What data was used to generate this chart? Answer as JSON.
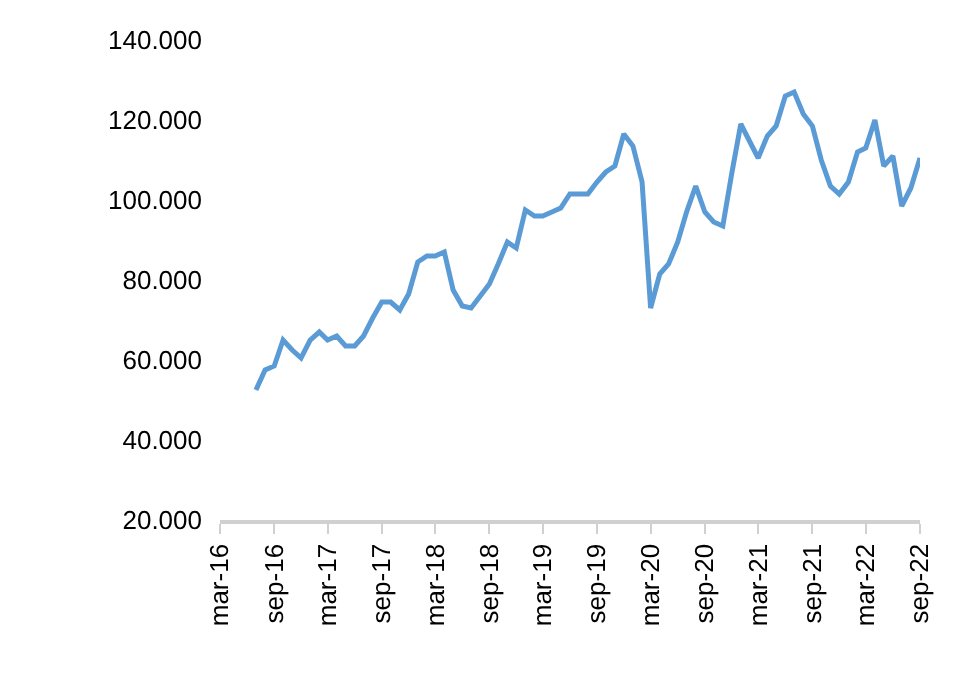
{
  "chart_data": {
    "type": "line",
    "x": [
      "2016-07",
      "2016-08",
      "2016-09",
      "2016-10",
      "2016-11",
      "2016-12",
      "2017-01",
      "2017-02",
      "2017-03",
      "2017-04",
      "2017-05",
      "2017-06",
      "2017-07",
      "2017-08",
      "2017-09",
      "2017-10",
      "2017-11",
      "2017-12",
      "2018-01",
      "2018-02",
      "2018-03",
      "2018-04",
      "2018-05",
      "2018-06",
      "2018-07",
      "2018-08",
      "2018-09",
      "2018-10",
      "2018-11",
      "2018-12",
      "2019-01",
      "2019-02",
      "2019-03",
      "2019-04",
      "2019-05",
      "2019-06",
      "2019-07",
      "2019-08",
      "2019-09",
      "2019-10",
      "2019-11",
      "2019-12",
      "2020-01",
      "2020-02",
      "2020-03",
      "2020-04",
      "2020-05",
      "2020-06",
      "2020-07",
      "2020-08",
      "2020-09",
      "2020-10",
      "2020-11",
      "2020-12",
      "2021-01",
      "2021-02",
      "2021-03",
      "2021-04",
      "2021-05",
      "2021-06",
      "2021-07",
      "2021-08",
      "2021-09",
      "2021-10",
      "2021-11",
      "2021-12",
      "2022-01",
      "2022-02",
      "2022-03",
      "2022-04",
      "2022-05",
      "2022-06",
      "2022-07",
      "2022-08",
      "2022-09"
    ],
    "series": [
      {
        "color": "#5b9bd5",
        "values": [
          52500,
          57500,
          58500,
          65000,
          62500,
          60500,
          65000,
          67000,
          65000,
          66000,
          63500,
          63500,
          66000,
          70500,
          74500,
          74500,
          72500,
          76500,
          84500,
          86000,
          86000,
          87000,
          77500,
          73500,
          73000,
          76000,
          79000,
          84000,
          89500,
          88000,
          97500,
          96000,
          96000,
          97000,
          98000,
          101500,
          101500,
          101500,
          104500,
          107000,
          108500,
          116500,
          113500,
          104500,
          73000,
          81500,
          84000,
          89500,
          97000,
          103500,
          97000,
          94500,
          93500,
          106500,
          119000,
          114500,
          110500,
          116000,
          118500,
          126000,
          127000,
          121500,
          118500,
          110000,
          103500,
          101500,
          104500,
          112000,
          113000,
          120000,
          108500,
          111000,
          98500,
          103000,
          110500
        ]
      }
    ],
    "ylim": [
      20000,
      140000
    ],
    "yticks": [
      {
        "value": 20000,
        "label": "20.000"
      },
      {
        "value": 40000,
        "label": "40.000"
      },
      {
        "value": 60000,
        "label": "60.000"
      },
      {
        "value": 80000,
        "label": "80.000"
      },
      {
        "value": 100000,
        "label": "100.000"
      },
      {
        "value": 120000,
        "label": "120.000"
      },
      {
        "value": 140000,
        "label": "140.000"
      }
    ],
    "xlim": [
      "2016-03",
      "2022-09"
    ],
    "xticks": [
      {
        "value": "2016-03",
        "label": "mar-16"
      },
      {
        "value": "2016-09",
        "label": "sep-16"
      },
      {
        "value": "2017-03",
        "label": "mar-17"
      },
      {
        "value": "2017-09",
        "label": "sep-17"
      },
      {
        "value": "2018-03",
        "label": "mar-18"
      },
      {
        "value": "2018-09",
        "label": "sep-18"
      },
      {
        "value": "2019-03",
        "label": "mar-19"
      },
      {
        "value": "2019-09",
        "label": "sep-19"
      },
      {
        "value": "2020-03",
        "label": "mar-20"
      },
      {
        "value": "2020-09",
        "label": "sep-20"
      },
      {
        "value": "2021-03",
        "label": "mar-21"
      },
      {
        "value": "2021-09",
        "label": "sep-21"
      },
      {
        "value": "2022-03",
        "label": "mar-22"
      },
      {
        "value": "2022-09",
        "label": "sep-22"
      }
    ],
    "marker": "none",
    "line_style": "solid"
  }
}
